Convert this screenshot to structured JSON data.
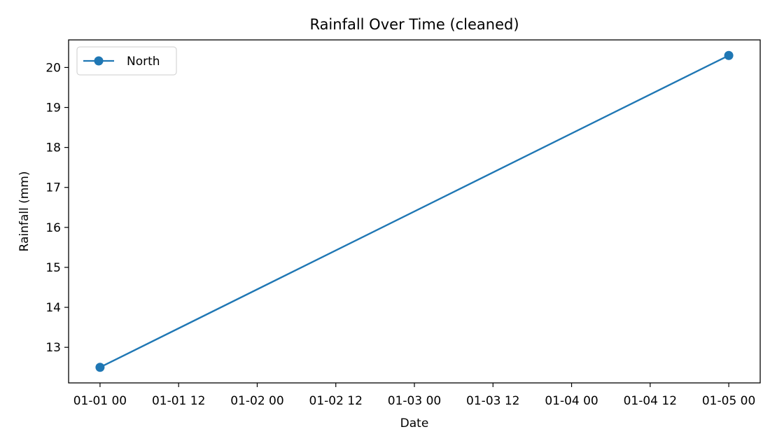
{
  "chart_data": {
    "type": "line",
    "title": "Rainfall Over Time (cleaned)",
    "xlabel": "Date",
    "ylabel": "Rainfall (mm)",
    "x_ticks": [
      "01-01 00",
      "01-01 12",
      "01-02 00",
      "01-02 12",
      "01-03 00",
      "01-03 12",
      "01-04 00",
      "01-04 12",
      "01-05 00"
    ],
    "y_ticks": [
      "13",
      "14",
      "15",
      "16",
      "17",
      "18",
      "19",
      "20"
    ],
    "xlim": [
      "01-01 00",
      "01-05 00"
    ],
    "ylim": [
      12.5,
      20.3
    ],
    "grid": false,
    "legend_position": "upper-left",
    "series": [
      {
        "name": "North",
        "color": "#1f77b4",
        "marker": "circle",
        "points": [
          {
            "x": "01-01 00",
            "y": 12.5
          },
          {
            "x": "01-05 00",
            "y": 20.3
          }
        ]
      }
    ]
  }
}
